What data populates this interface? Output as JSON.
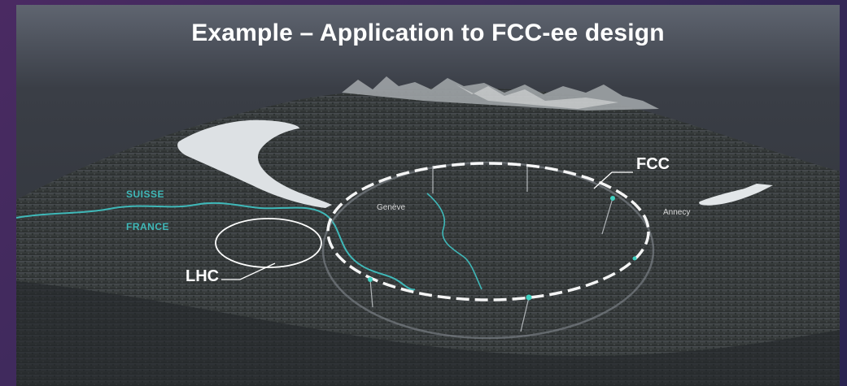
{
  "slide": {
    "title": "Example – Application to FCC-ee design"
  },
  "map": {
    "countries": {
      "suisse": "SUISSE",
      "france": "FRANCE"
    },
    "cities": {
      "geneve": "Genève",
      "annecy": "Annecy"
    },
    "rings": {
      "fcc": "FCC",
      "lhc": "LHC"
    }
  },
  "colors": {
    "background": "#3a2a5a",
    "border_accent": "#6a3a8a",
    "border_river": "#3fb8b8",
    "ring": "#ffffff"
  }
}
